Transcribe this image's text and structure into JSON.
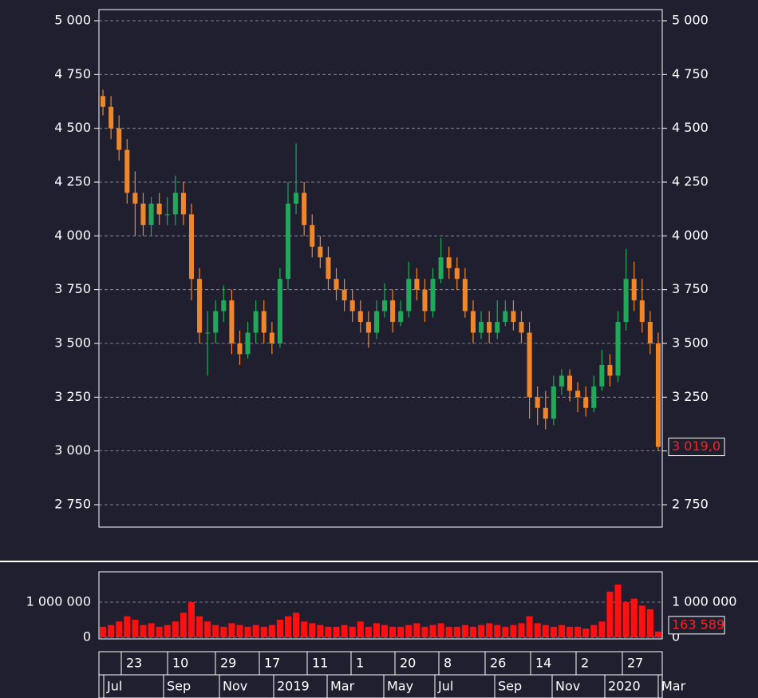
{
  "chart_data": {
    "type": "candlestick",
    "ylim": [
      2646,
      5052
    ],
    "yticks": [
      {
        "value": 5000,
        "label": "5 000"
      },
      {
        "value": 4750,
        "label": "4 750"
      },
      {
        "value": 4500,
        "label": "4 500"
      },
      {
        "value": 4250,
        "label": "4 250"
      },
      {
        "value": 4000,
        "label": "4 000"
      },
      {
        "value": 3750,
        "label": "3 750"
      },
      {
        "value": 3500,
        "label": "3 500"
      },
      {
        "value": 3250,
        "label": "3 250"
      },
      {
        "value": 3000,
        "label": "3 000"
      },
      {
        "value": 2750,
        "label": "2 750"
      }
    ],
    "grid": true,
    "up_color": "#22a85a",
    "down_color": "#f0862a",
    "open": [
      4650,
      4600,
      4500,
      4400,
      4200,
      4150,
      4050,
      4150,
      4100,
      4100,
      4200,
      4100,
      3800,
      3550,
      3550,
      3650,
      3700,
      3500,
      3450,
      3550,
      3650,
      3550,
      3500,
      3800,
      4150,
      4200,
      4050,
      3950,
      3900,
      3800,
      3750,
      3700,
      3650,
      3600,
      3550,
      3650,
      3700,
      3600,
      3650,
      3800,
      3750,
      3650,
      3800,
      3900,
      3850,
      3800,
      3650,
      3550,
      3600,
      3550,
      3600,
      3650,
      3600,
      3550,
      3250,
      3200,
      3150,
      3300,
      3350,
      3280,
      3250,
      3200,
      3300,
      3400,
      3350,
      3600,
      3800,
      3700,
      3600,
      3500
    ],
    "high": [
      4680,
      4650,
      4560,
      4450,
      4300,
      4200,
      4180,
      4200,
      4180,
      4280,
      4250,
      4150,
      3850,
      3650,
      3700,
      3770,
      3750,
      3560,
      3600,
      3700,
      3700,
      3600,
      3850,
      4250,
      4430,
      4250,
      4100,
      4000,
      3950,
      3850,
      3800,
      3750,
      3700,
      3650,
      3700,
      3780,
      3750,
      3700,
      3880,
      3850,
      3800,
      3850,
      3990,
      3950,
      3900,
      3850,
      3700,
      3650,
      3650,
      3700,
      3700,
      3700,
      3650,
      3600,
      3300,
      3280,
      3350,
      3380,
      3380,
      3320,
      3300,
      3350,
      3470,
      3450,
      3650,
      3940,
      3880,
      3800,
      3650,
      3550
    ],
    "low": [
      4560,
      4450,
      4350,
      4150,
      4000,
      4000,
      4000,
      4050,
      4050,
      4050,
      4050,
      3700,
      3500,
      3350,
      3500,
      3600,
      3450,
      3400,
      3430,
      3500,
      3500,
      3450,
      3480,
      3750,
      4100,
      4000,
      3900,
      3850,
      3750,
      3700,
      3650,
      3600,
      3550,
      3480,
      3520,
      3620,
      3550,
      3580,
      3620,
      3700,
      3600,
      3620,
      3780,
      3800,
      3750,
      3620,
      3500,
      3520,
      3500,
      3520,
      3580,
      3560,
      3500,
      3150,
      3120,
      3100,
      3120,
      3260,
      3230,
      3180,
      3160,
      3180,
      3280,
      3300,
      3320,
      3560,
      3650,
      3550,
      3450,
      3000
    ],
    "close": [
      4600,
      4500,
      4400,
      4200,
      4150,
      4050,
      4150,
      4100,
      4100,
      4200,
      4100,
      3800,
      3550,
      3550,
      3650,
      3700,
      3500,
      3450,
      3550,
      3650,
      3550,
      3500,
      3800,
      4150,
      4200,
      4050,
      3950,
      3900,
      3800,
      3750,
      3700,
      3650,
      3600,
      3550,
      3650,
      3700,
      3600,
      3650,
      3800,
      3750,
      3650,
      3800,
      3900,
      3850,
      3800,
      3650,
      3550,
      3600,
      3550,
      3600,
      3650,
      3600,
      3550,
      3250,
      3200,
      3150,
      3300,
      3350,
      3280,
      3250,
      3200,
      3300,
      3400,
      3350,
      3600,
      3800,
      3700,
      3600,
      3500,
      3019
    ],
    "last_price": {
      "value": 3019,
      "label": "3 019,0"
    },
    "volume": {
      "color": "#ff1010",
      "values": [
        300000,
        350000,
        450000,
        600000,
        500000,
        350000,
        400000,
        300000,
        350000,
        450000,
        700000,
        1000000,
        600000,
        450000,
        350000,
        300000,
        400000,
        350000,
        300000,
        350000,
        300000,
        350000,
        500000,
        600000,
        700000,
        450000,
        400000,
        350000,
        300000,
        300000,
        350000,
        300000,
        450000,
        300000,
        400000,
        350000,
        300000,
        300000,
        350000,
        400000,
        300000,
        350000,
        400000,
        300000,
        300000,
        350000,
        300000,
        350000,
        400000,
        350000,
        300000,
        350000,
        400000,
        600000,
        400000,
        350000,
        300000,
        350000,
        300000,
        300000,
        250000,
        350000,
        450000,
        1300000,
        1500000,
        1000000,
        1100000,
        900000,
        800000,
        163589
      ],
      "ylim": [
        -45000,
        1864000
      ],
      "yticks": [
        {
          "value": 1000000,
          "label": "1 000 000"
        },
        0
      ],
      "last": {
        "value": 163589,
        "label": "163 589"
      }
    },
    "time_axis": {
      "days": [
        "23",
        "10",
        "29",
        "17",
        "11",
        "1",
        "20",
        "8",
        "26",
        "14",
        "2",
        "27"
      ],
      "months": [
        "Jul",
        "Sep",
        "Nov",
        "2019",
        "Mar",
        "May",
        "Jul",
        "Sep",
        "Nov",
        "2020",
        "Mar"
      ]
    }
  }
}
